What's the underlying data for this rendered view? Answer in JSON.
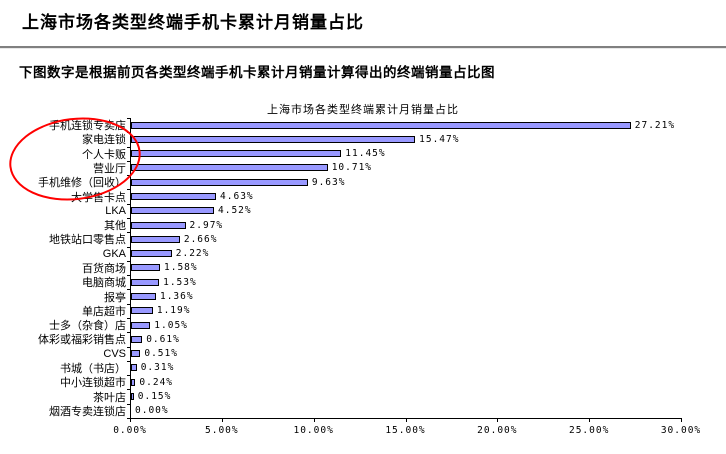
{
  "page": {
    "title": "上海市场各类型终端手机卡累计月销量占比",
    "subtitle": "下图数字是根据前页各类型终端手机卡累计月销量计算得出的终端销量占比图"
  },
  "chart_data": {
    "type": "bar",
    "orientation": "horizontal",
    "title": "上海市场各类型终端累计月销量占比",
    "categories": [
      "手机连锁专卖店",
      "家电连锁",
      "个人卡贩",
      "营业厅",
      "手机维修（回收）",
      "大学售卡点",
      "LKA",
      "其他",
      "地铁站口零售点",
      "GKA",
      "百货商场",
      "电脑商城",
      "报亭",
      "单店超市",
      "士多（杂食）店",
      "体彩或福彩销售点",
      "CVS",
      "书城（书店）",
      "中小连锁超市",
      "茶叶店",
      "烟酒专卖连锁店"
    ],
    "values": [
      27.21,
      15.47,
      11.45,
      10.71,
      9.63,
      4.63,
      4.52,
      2.97,
      2.66,
      2.22,
      1.58,
      1.53,
      1.36,
      1.19,
      1.05,
      0.61,
      0.51,
      0.31,
      0.24,
      0.15,
      0.0
    ],
    "value_labels": [
      "27.21%",
      "15.47%",
      "11.45%",
      "10.71%",
      "9.63%",
      "4.63%",
      "4.52%",
      "2.97%",
      "2.66%",
      "2.22%",
      "1.58%",
      "1.53%",
      "1.36%",
      "1.19%",
      "1.05%",
      "0.61%",
      "0.51%",
      "0.31%",
      "0.24%",
      "0.15%",
      "0.00%"
    ],
    "x_ticks": [
      "0.00%",
      "5.00%",
      "10.00%",
      "15.00%",
      "20.00%",
      "25.00%",
      "30.00%"
    ],
    "xlim": [
      0,
      30
    ],
    "grid": "off",
    "legend": "none",
    "bar_color": "#9999FF",
    "bar_border_color": "#000000",
    "annotation": {
      "shape": "ellipse",
      "color": "#FF0000",
      "circled_categories": [
        "手机连锁专卖店",
        "家电连锁",
        "个人卡贩",
        "营业厅",
        "手机维修（回收）"
      ]
    }
  }
}
